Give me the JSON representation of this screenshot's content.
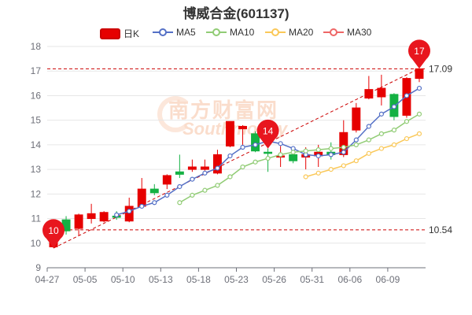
{
  "title": "博威合金(601137)",
  "legend": [
    {
      "label": "日K",
      "color": "#e60000",
      "kind": "candle"
    },
    {
      "label": "MA5",
      "color": "#5470c6",
      "kind": "line"
    },
    {
      "label": "MA10",
      "color": "#91cc75",
      "kind": "line"
    },
    {
      "label": "MA20",
      "color": "#fac858",
      "kind": "line"
    },
    {
      "label": "MA30",
      "color": "#ee6666",
      "kind": "line"
    }
  ],
  "watermark": {
    "main": "南方财富网",
    "sub": "Southmoney"
  },
  "colors": {
    "up": "#e60000",
    "down": "#14b143",
    "axis": "#6e7079",
    "grid": "#e6e6e6",
    "mark": "#cc0000"
  },
  "chart_data": {
    "type": "candlestick",
    "title": "博威合金(601137)",
    "ylim": [
      9,
      18
    ],
    "yticks": [
      9,
      10,
      11,
      12,
      13,
      14,
      15,
      16,
      17,
      18
    ],
    "grid": true,
    "legend_position": "top",
    "x_tick_labels": [
      {
        "index": 0,
        "label": "04-27"
      },
      {
        "index": 3,
        "label": "05-05"
      },
      {
        "index": 6,
        "label": "05-10"
      },
      {
        "index": 9,
        "label": "05-13"
      },
      {
        "index": 12,
        "label": "05-18"
      },
      {
        "index": 15,
        "label": "05-23"
      },
      {
        "index": 18,
        "label": "05-26"
      },
      {
        "index": 21,
        "label": "05-31"
      },
      {
        "index": 24,
        "label": "06-06"
      },
      {
        "index": 27,
        "label": "06-09"
      }
    ],
    "candles": [
      {
        "o": 9.85,
        "c": 10.15,
        "h": 10.3,
        "l": 9.8
      },
      {
        "o": 10.95,
        "c": 10.5,
        "h": 11.1,
        "l": 10.35
      },
      {
        "o": 10.6,
        "c": 11.15,
        "h": 11.2,
        "l": 10.3
      },
      {
        "o": 11.0,
        "c": 11.2,
        "h": 11.6,
        "l": 10.8
      },
      {
        "o": 10.9,
        "c": 11.25,
        "h": 11.3,
        "l": 10.85
      },
      {
        "o": 11.1,
        "c": 11.05,
        "h": 11.3,
        "l": 10.95
      },
      {
        "o": 10.9,
        "c": 11.5,
        "h": 11.85,
        "l": 10.85
      },
      {
        "o": 11.5,
        "c": 12.2,
        "h": 12.65,
        "l": 11.45
      },
      {
        "o": 12.2,
        "c": 12.05,
        "h": 12.4,
        "l": 11.95
      },
      {
        "o": 12.4,
        "c": 12.75,
        "h": 12.8,
        "l": 12.2
      },
      {
        "o": 12.9,
        "c": 12.8,
        "h": 13.6,
        "l": 12.65
      },
      {
        "o": 13.0,
        "c": 13.1,
        "h": 13.4,
        "l": 12.9
      },
      {
        "o": 13.0,
        "c": 13.1,
        "h": 13.4,
        "l": 12.95
      },
      {
        "o": 12.85,
        "c": 13.6,
        "h": 13.8,
        "l": 12.8
      },
      {
        "o": 13.95,
        "c": 14.95,
        "h": 14.95,
        "l": 13.9
      },
      {
        "o": 14.65,
        "c": 14.75,
        "h": 14.8,
        "l": 14.0
      },
      {
        "o": 14.45,
        "c": 13.75,
        "h": 14.55,
        "l": 13.7
      },
      {
        "o": 13.7,
        "c": 13.65,
        "h": 13.85,
        "l": 12.9
      },
      {
        "o": 13.5,
        "c": 13.55,
        "h": 13.95,
        "l": 13.1
      },
      {
        "o": 13.6,
        "c": 13.35,
        "h": 13.7,
        "l": 13.25
      },
      {
        "o": 13.5,
        "c": 13.6,
        "h": 13.9,
        "l": 13.0
      },
      {
        "o": 13.55,
        "c": 13.7,
        "h": 14.0,
        "l": 13.1
      },
      {
        "o": 13.7,
        "c": 13.6,
        "h": 14.1,
        "l": 13.4
      },
      {
        "o": 13.6,
        "c": 14.5,
        "h": 15.0,
        "l": 13.5
      },
      {
        "o": 14.6,
        "c": 15.5,
        "h": 15.7,
        "l": 14.5
      },
      {
        "o": 15.9,
        "c": 16.25,
        "h": 16.8,
        "l": 15.85
      },
      {
        "o": 15.95,
        "c": 16.3,
        "h": 16.85,
        "l": 15.6
      },
      {
        "o": 16.05,
        "c": 15.15,
        "h": 16.1,
        "l": 15.0
      },
      {
        "o": 15.2,
        "c": 16.7,
        "h": 16.75,
        "l": 15.1
      },
      {
        "o": 16.7,
        "c": 17.09,
        "h": 17.1,
        "l": 16.55
      }
    ],
    "series": [
      {
        "name": "MA5",
        "start": 5,
        "values": [
          11.15,
          11.3,
          11.5,
          11.65,
          11.95,
          12.3,
          12.6,
          12.85,
          13.05,
          13.55,
          13.9,
          14.0,
          14.15,
          14.05,
          13.85,
          13.6,
          13.55,
          13.6,
          13.7,
          14.2,
          14.75,
          15.25,
          15.55,
          16.0,
          16.3
        ]
      },
      {
        "name": "MA10",
        "start": 10,
        "values": [
          11.65,
          11.95,
          12.15,
          12.35,
          12.7,
          13.1,
          13.3,
          13.45,
          13.6,
          13.7,
          13.75,
          13.8,
          13.85,
          13.9,
          14.0,
          14.2,
          14.45,
          14.6,
          14.95,
          15.25
        ]
      },
      {
        "name": "MA20",
        "start": 20,
        "values": [
          12.7,
          12.85,
          13.0,
          13.15,
          13.35,
          13.65,
          13.85,
          14.0,
          14.25,
          14.45
        ]
      }
    ],
    "markpoints": [
      {
        "index": 0,
        "value": "10",
        "side": "above-low"
      },
      {
        "index": 17,
        "value": "14",
        "side": "above-high"
      },
      {
        "index": 29,
        "value": "17",
        "side": "above-high"
      }
    ],
    "marklines": [
      {
        "value": 17.09,
        "label": "17.09"
      },
      {
        "value": 10.54,
        "label": "10.54"
      }
    ],
    "trendline": {
      "from": {
        "index": 0,
        "value": 9.8
      },
      "to": {
        "index": 29,
        "value": 17.1
      }
    }
  }
}
